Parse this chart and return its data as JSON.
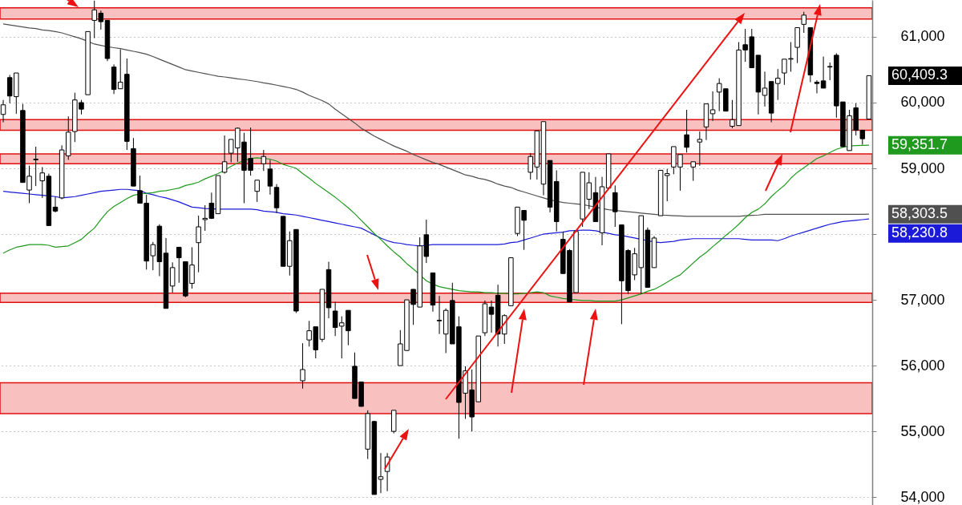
{
  "chart_data": {
    "type": "candlestick",
    "categories": [
      null,
      null,
      null,
      null,
      null,
      null,
      null,
      null,
      null,
      null,
      null,
      null,
      null,
      null,
      null,
      null,
      null,
      null,
      null,
      null,
      null,
      null,
      null,
      null,
      null,
      null,
      null,
      null,
      null,
      null,
      null,
      null,
      null,
      null,
      null,
      null,
      null,
      null,
      null,
      null,
      null,
      null,
      null,
      null,
      null,
      null,
      null,
      null,
      null,
      null,
      null,
      null,
      null,
      null,
      null,
      null,
      null,
      null,
      null,
      null,
      null,
      null,
      null,
      null,
      null,
      null,
      null,
      null,
      null,
      null,
      null,
      null,
      null,
      null,
      null,
      null,
      null,
      null,
      null,
      null,
      null,
      null,
      null,
      null,
      null,
      null,
      null,
      null,
      null,
      null,
      null,
      null,
      null,
      null,
      null,
      null,
      null,
      null,
      null,
      null,
      null,
      null,
      null,
      null,
      null,
      null,
      null,
      null,
      null,
      null,
      null,
      null,
      null,
      null,
      null,
      null,
      null,
      null,
      null,
      null,
      null,
      null,
      null,
      null,
      null,
      null,
      null,
      null,
      null,
      null,
      null,
      null,
      null,
      null
    ],
    "ohlc": [
      [
        59820,
        60040,
        59700,
        59966
      ],
      [
        60380,
        60420,
        59990,
        60100
      ],
      [
        60090,
        60450,
        59830,
        60450
      ],
      [
        59880,
        59980,
        58785,
        58785
      ],
      [
        58670,
        59040,
        58470,
        58880
      ],
      [
        59140,
        59330,
        58730,
        59130
      ],
      [
        58810,
        59020,
        58550,
        58930
      ],
      [
        58880,
        58920,
        58130,
        58130
      ],
      [
        58410,
        58570,
        58330,
        58350
      ],
      [
        58550,
        59350,
        58530,
        59280
      ],
      [
        59190,
        59790,
        59130,
        59550
      ],
      [
        59560,
        60150,
        59400,
        60040
      ],
      [
        60000,
        60040,
        59820,
        59900
      ],
      [
        60120,
        61080,
        60120,
        61080
      ],
      [
        61250,
        61550,
        60980,
        61410
      ],
      [
        61360,
        61400,
        61110,
        61230
      ],
      [
        61250,
        61250,
        60630,
        60670
      ],
      [
        60540,
        60580,
        60130,
        60200
      ],
      [
        60210,
        60810,
        60210,
        60310
      ],
      [
        60430,
        60670,
        59280,
        59410
      ],
      [
        59300,
        59460,
        58730,
        58730
      ],
      [
        58660,
        58890,
        58470,
        58470
      ],
      [
        58470,
        58600,
        57460,
        57590
      ],
      [
        57670,
        57880,
        57450,
        57840
      ],
      [
        58120,
        58150,
        57360,
        57580
      ],
      [
        57710,
        57940,
        56870,
        56870
      ],
      [
        57210,
        57570,
        57110,
        57490
      ],
      [
        57800,
        57800,
        57260,
        57640
      ],
      [
        57580,
        57580,
        57040,
        57060
      ],
      [
        57250,
        57800,
        57170,
        57530
      ],
      [
        57870,
        58280,
        57420,
        58110
      ],
      [
        58220,
        58440,
        58050,
        58240
      ],
      [
        58470,
        58630,
        58230,
        58240
      ],
      [
        58310,
        58890,
        58310,
        58890
      ],
      [
        58940,
        59500,
        58920,
        59100
      ],
      [
        59230,
        59440,
        59090,
        59440
      ],
      [
        59310,
        59620,
        59100,
        59610
      ],
      [
        59400,
        59540,
        58470,
        58970
      ],
      [
        59150,
        59620,
        58890,
        58970
      ],
      [
        58650,
        58820,
        58490,
        58820
      ],
      [
        59070,
        59280,
        58960,
        59180
      ],
      [
        58990,
        59130,
        58600,
        58730
      ],
      [
        58710,
        58760,
        58320,
        58400
      ],
      [
        58270,
        58270,
        57510,
        57510
      ],
      [
        57510,
        58040,
        57370,
        57900
      ],
      [
        58070,
        58070,
        56800,
        56830
      ],
      [
        55770,
        56340,
        55650,
        55940
      ],
      [
        56390,
        56680,
        56290,
        56530
      ],
      [
        56590,
        56590,
        56110,
        56240
      ],
      [
        56400,
        57160,
        56360,
        57160
      ],
      [
        57460,
        57580,
        56720,
        56880
      ],
      [
        56830,
        56970,
        56450,
        56580
      ],
      [
        56600,
        56750,
        56110,
        56650
      ],
      [
        56840,
        56840,
        56310,
        56530
      ],
      [
        55990,
        56200,
        55500,
        55500
      ],
      [
        55750,
        55750,
        55380,
        55380
      ],
      [
        54730,
        55320,
        54580,
        55270
      ],
      [
        55150,
        55160,
        54040,
        54040
      ],
      [
        54270,
        54670,
        54060,
        54310
      ],
      [
        54390,
        54670,
        54090,
        54610
      ],
      [
        55000,
        55320,
        54970,
        55320
      ],
      [
        56000,
        56540,
        56000,
        56330
      ],
      [
        56230,
        57000,
        56230,
        57000
      ],
      [
        57160,
        57160,
        56620,
        56930
      ],
      [
        56890,
        57950,
        56890,
        57820
      ],
      [
        57990,
        58220,
        57560,
        57660
      ],
      [
        57410,
        57410,
        56820,
        56920
      ],
      [
        56680,
        57060,
        56480,
        56690
      ],
      [
        56480,
        56870,
        56190,
        56840
      ],
      [
        56990,
        57260,
        56330,
        56330
      ],
      [
        56590,
        56750,
        54890,
        55440
      ],
      [
        55580,
        55990,
        55190,
        55920
      ],
      [
        55630,
        55940,
        55000,
        55220
      ],
      [
        55450,
        56450,
        55450,
        56450
      ],
      [
        56500,
        56990,
        56450,
        56940
      ],
      [
        56890,
        56990,
        56500,
        56780
      ],
      [
        57070,
        57230,
        56290,
        56480
      ],
      [
        56480,
        56780,
        56330,
        56760
      ],
      [
        56910,
        57640,
        56910,
        57640
      ],
      [
        58010,
        58410,
        57970,
        58410
      ],
      [
        58360,
        58360,
        57760,
        58210
      ],
      [
        58940,
        59230,
        58830,
        59180
      ],
      [
        59020,
        59570,
        58830,
        59570
      ],
      [
        58760,
        59710,
        58590,
        59710
      ],
      [
        59120,
        59120,
        58330,
        58410
      ],
      [
        58800,
        58970,
        58040,
        58190
      ],
      [
        57920,
        58040,
        57400,
        57400
      ],
      [
        57750,
        57770,
        56970,
        56970
      ],
      [
        57110,
        58040,
        57110,
        58040
      ],
      [
        58230,
        58940,
        58110,
        58940
      ],
      [
        58530,
        58940,
        58380,
        58780
      ],
      [
        58630,
        58870,
        58190,
        58190
      ],
      [
        58020,
        58870,
        57830,
        58720
      ],
      [
        58700,
        59220,
        58680,
        59220
      ],
      [
        58630,
        58740,
        58110,
        58340
      ],
      [
        58140,
        58140,
        56630,
        57290
      ],
      [
        57750,
        57770,
        57090,
        57140
      ],
      [
        57380,
        57790,
        57300,
        57700
      ],
      [
        57490,
        58280,
        57090,
        58280
      ],
      [
        58060,
        58100,
        57190,
        57190
      ],
      [
        57490,
        57970,
        57490,
        57940
      ],
      [
        58280,
        58970,
        58280,
        58970
      ],
      [
        58890,
        58990,
        58500,
        58920
      ],
      [
        59020,
        59330,
        58910,
        59330
      ],
      [
        59020,
        59210,
        58660,
        59210
      ],
      [
        59510,
        59890,
        59240,
        59320
      ],
      [
        59020,
        59100,
        58810,
        59100
      ],
      [
        59400,
        59560,
        59040,
        59440
      ],
      [
        59630,
        59980,
        59430,
        59980
      ],
      [
        59830,
        60170,
        59720,
        59890
      ],
      [
        60160,
        60370,
        59870,
        60290
      ],
      [
        60210,
        60210,
        59870,
        59870
      ],
      [
        59640,
        60040,
        59610,
        59740
      ],
      [
        59650,
        60920,
        59650,
        60800
      ],
      [
        60880,
        61120,
        60620,
        60800
      ],
      [
        61000,
        61120,
        60530,
        60530
      ],
      [
        60720,
        60720,
        59820,
        60160
      ],
      [
        60110,
        60470,
        59940,
        60220
      ],
      [
        60320,
        60320,
        59700,
        59840
      ],
      [
        60290,
        60510,
        60040,
        60370
      ],
      [
        60450,
        60660,
        60270,
        60660
      ],
      [
        60660,
        60920,
        60470,
        60670
      ],
      [
        60840,
        61140,
        60600,
        61140
      ],
      [
        61190,
        61380,
        61060,
        61330
      ],
      [
        61140,
        61140,
        60310,
        60420
      ],
      [
        60310,
        60340,
        60140,
        60290
      ],
      [
        60330,
        60700,
        60220,
        60220
      ],
      [
        60540,
        60610,
        60340,
        60550
      ],
      [
        60720,
        60750,
        59770,
        59950
      ],
      [
        60010,
        60010,
        59320,
        59330
      ],
      [
        59270,
        59890,
        59270,
        59800
      ],
      [
        59920,
        59990,
        59500,
        59580
      ],
      [
        59580,
        59580,
        59360,
        59450
      ],
      [
        59750,
        60410,
        59750,
        60409.3
      ]
    ],
    "series": [
      {
        "type": "line",
        "color": "#505050",
        "values": [
          61195,
          61180,
          61165,
          61150,
          61135,
          61125,
          61105,
          61095,
          61080,
          61060,
          61030,
          61000,
          60970,
          60930,
          60890,
          60870,
          60850,
          60835,
          60820,
          60800,
          60780,
          60760,
          60735,
          60700,
          60660,
          60620,
          60580,
          60540,
          60500,
          60480,
          60460,
          60440,
          60420,
          60400,
          60390,
          60375,
          60360,
          60350,
          60335,
          60320,
          60300,
          60285,
          60265,
          60245,
          60225,
          60200,
          60160,
          60110,
          60070,
          60030,
          59980,
          59900,
          59830,
          59760,
          59690,
          59610,
          59550,
          59490,
          59440,
          59390,
          59340,
          59300,
          59260,
          59210,
          59170,
          59130,
          59090,
          59060,
          59020,
          58980,
          58940,
          58900,
          58880,
          58850,
          58830,
          58800,
          58760,
          58730,
          58710,
          58670,
          58640,
          58610,
          58580,
          58550,
          58520,
          58500,
          58480,
          58470,
          58460,
          58450,
          58430,
          58410,
          58390,
          58370,
          58360,
          58350,
          58340,
          58330,
          58320,
          58310,
          58300,
          58290,
          58285,
          58280,
          58275,
          58270,
          58270,
          58270,
          58270,
          58270,
          58270,
          58270,
          58270,
          58270,
          58280,
          58285,
          58290,
          58300,
          58300,
          58300,
          58300,
          58300,
          58300,
          58300,
          58300,
          58300,
          58300,
          58300,
          58300,
          58300,
          58300,
          58300,
          58300,
          58303.5
        ]
      },
      {
        "type": "line",
        "color": "#1a1ad8",
        "values": [
          58650,
          58640,
          58630,
          58620,
          58610,
          58600,
          58590,
          58580,
          58570,
          58550,
          58560,
          58570,
          58590,
          58610,
          58630,
          58650,
          58660,
          58670,
          58680,
          58680,
          58670,
          58660,
          58620,
          58600,
          58570,
          58550,
          58520,
          58490,
          58450,
          58410,
          58400,
          58390,
          58385,
          58380,
          58380,
          58380,
          58380,
          58380,
          58380,
          58370,
          58350,
          58340,
          58330,
          58310,
          58300,
          58290,
          58270,
          58250,
          58230,
          58210,
          58190,
          58170,
          58150,
          58130,
          58110,
          58090,
          58040,
          57990,
          57940,
          57900,
          57870,
          57860,
          57840,
          57830,
          57820,
          57830,
          57840,
          57840,
          57840,
          57840,
          57840,
          57840,
          57840,
          57840,
          57840,
          57840,
          57840,
          57850,
          57870,
          57880,
          57910,
          57940,
          57970,
          58000,
          58010,
          58020,
          58030,
          58050,
          58055,
          58060,
          58060,
          58050,
          58030,
          58010,
          57990,
          57980,
          57960,
          57940,
          57920,
          57900,
          57880,
          57870,
          57880,
          57890,
          57910,
          57920,
          57930,
          57930,
          57930,
          57930,
          57930,
          57930,
          57930,
          57930,
          57920,
          57910,
          57910,
          57910,
          57910,
          57900,
          57930,
          57970,
          58000,
          58030,
          58060,
          58090,
          58120,
          58150,
          58170,
          58190,
          58200,
          58210,
          58220,
          58230.8
        ]
      },
      {
        "type": "line",
        "color": "#1f9a1f",
        "values": [
          57710,
          57760,
          57800,
          57820,
          57840,
          57840,
          57840,
          57830,
          57800,
          57810,
          57820,
          57870,
          57920,
          58010,
          58090,
          58220,
          58340,
          58420,
          58480,
          58540,
          58590,
          58610,
          58620,
          58630,
          58650,
          58660,
          58680,
          58700,
          58740,
          58760,
          58790,
          58840,
          58880,
          58920,
          58970,
          59030,
          59080,
          59120,
          59150,
          59160,
          59150,
          59140,
          59110,
          59060,
          59030,
          59000,
          58920,
          58850,
          58770,
          58700,
          58630,
          58560,
          58480,
          58400,
          58310,
          58210,
          58110,
          58010,
          57920,
          57820,
          57730,
          57650,
          57550,
          57470,
          57380,
          57290,
          57240,
          57200,
          57180,
          57160,
          57140,
          57130,
          57120,
          57120,
          57110,
          57110,
          57100,
          57100,
          57090,
          57090,
          57100,
          57110,
          57120,
          57110,
          57060,
          57040,
          57020,
          57010,
          57000,
          56990,
          56990,
          56980,
          56980,
          56980,
          56980,
          57000,
          57030,
          57060,
          57090,
          57130,
          57160,
          57210,
          57270,
          57330,
          57380,
          57470,
          57560,
          57650,
          57720,
          57810,
          57890,
          57980,
          58060,
          58150,
          58250,
          58330,
          58380,
          58460,
          58570,
          58660,
          58740,
          58850,
          58940,
          59010,
          59080,
          59150,
          59190,
          59240,
          59290,
          59320,
          59340,
          59345,
          59350,
          59351.7
        ]
      }
    ],
    "bands": [
      {
        "axis": "y",
        "from": 61270,
        "to": 61440,
        "color": "#f9c0c0"
      },
      {
        "axis": "y",
        "from": 59580,
        "to": 59740,
        "color": "#f9c0c0"
      },
      {
        "axis": "y",
        "from": 59070,
        "to": 59220,
        "color": "#f9c0c0"
      },
      {
        "axis": "y",
        "from": 56960,
        "to": 57100,
        "color": "#f9c0c0"
      },
      {
        "axis": "y",
        "from": 55270,
        "to": 55740,
        "color": "#f9c0c0"
      }
    ],
    "annotations": [
      "60,409.3",
      "58,303.5",
      "58,230.8",
      "59,351.7"
    ],
    "ylim": [
      53880,
      61560
    ],
    "yticks": [
      {
        "value": 54000,
        "label": "54,000"
      },
      {
        "value": 55000,
        "label": "55,000"
      },
      {
        "value": 56000,
        "label": "56,000"
      },
      {
        "value": 57000,
        "label": "57,000"
      },
      {
        "value": 58000,
        "label": null
      },
      {
        "value": 59000,
        "label": "59,000"
      },
      {
        "value": 60000,
        "label": "60,000"
      },
      {
        "value": 61000,
        "label": "61,000"
      }
    ],
    "grid": "y",
    "tick_labels": "y"
  }
}
